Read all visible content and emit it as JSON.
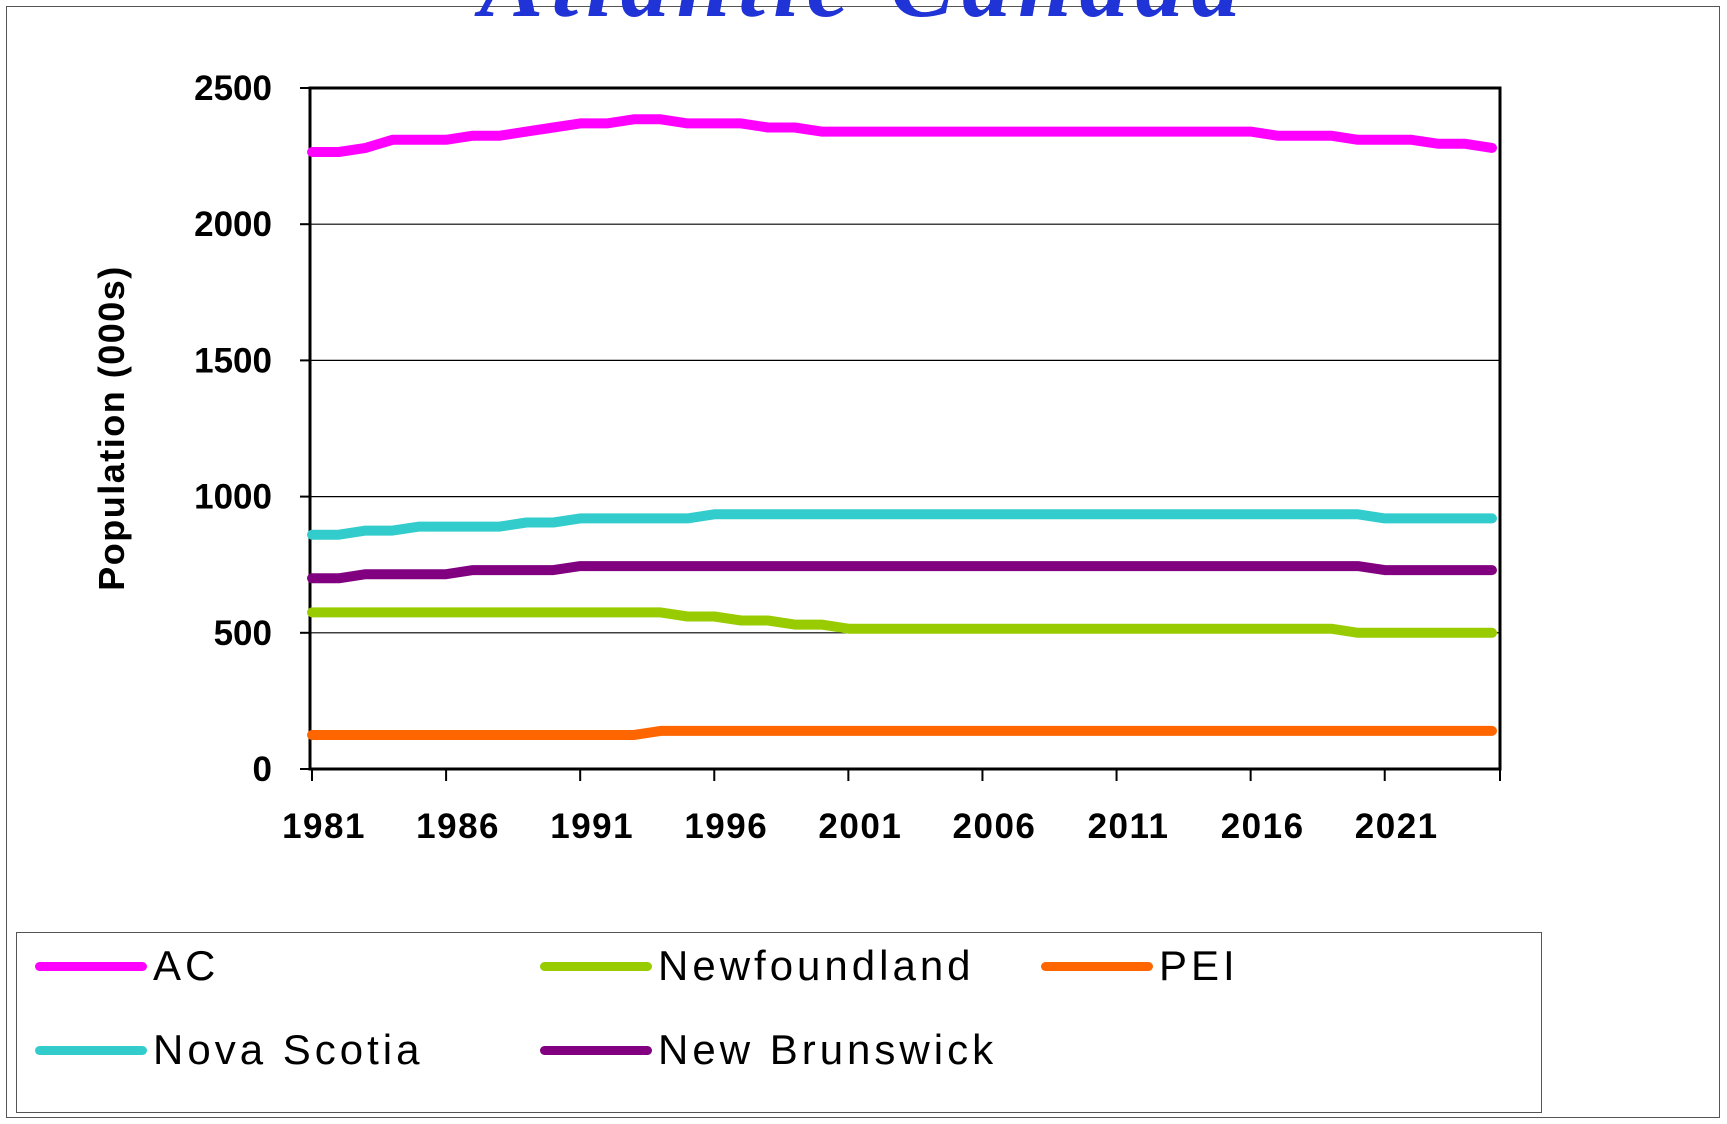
{
  "title": "Atlantic Canada",
  "chart_data": {
    "type": "line",
    "ylabel": "Population (000s)",
    "xlabel": "",
    "xlim": [
      1981,
      2025
    ],
    "ylim": [
      0,
      2500
    ],
    "y_ticks": [
      0,
      500,
      1000,
      1500,
      2000,
      2500
    ],
    "x_tick_labels": [
      1981,
      1986,
      1991,
      1996,
      2001,
      2006,
      2011,
      2016,
      2021
    ],
    "grid": "horizontal",
    "legend_position": "bottom",
    "x": [
      1981,
      1982,
      1983,
      1984,
      1985,
      1986,
      1987,
      1988,
      1989,
      1990,
      1991,
      1992,
      1993,
      1994,
      1995,
      1996,
      1997,
      1998,
      1999,
      2000,
      2001,
      2002,
      2003,
      2004,
      2005,
      2006,
      2007,
      2008,
      2009,
      2010,
      2011,
      2012,
      2013,
      2014,
      2015,
      2016,
      2017,
      2018,
      2019,
      2020,
      2021,
      2022,
      2023,
      2024,
      2025
    ],
    "series": [
      {
        "name": "AC",
        "color": "#ff00ff",
        "values": [
          2265,
          2265,
          2280,
          2310,
          2310,
          2310,
          2325,
          2325,
          2340,
          2355,
          2370,
          2370,
          2385,
          2385,
          2370,
          2370,
          2370,
          2355,
          2355,
          2340,
          2340,
          2340,
          2340,
          2340,
          2340,
          2340,
          2340,
          2340,
          2340,
          2340,
          2340,
          2340,
          2340,
          2340,
          2340,
          2340,
          2325,
          2325,
          2325,
          2310,
          2310,
          2310,
          2295,
          2295,
          2280
        ]
      },
      {
        "name": "Newfoundland",
        "color": "#99cc00",
        "values": [
          575,
          575,
          575,
          575,
          575,
          575,
          575,
          575,
          575,
          575,
          575,
          575,
          575,
          575,
          560,
          560,
          545,
          545,
          530,
          530,
          515,
          515,
          515,
          515,
          515,
          515,
          515,
          515,
          515,
          515,
          515,
          515,
          515,
          515,
          515,
          515,
          515,
          515,
          515,
          500,
          500,
          500,
          500,
          500,
          500
        ]
      },
      {
        "name": "PEI",
        "color": "#ff6600",
        "values": [
          125,
          125,
          125,
          125,
          125,
          125,
          125,
          125,
          125,
          125,
          125,
          125,
          125,
          140,
          140,
          140,
          140,
          140,
          140,
          140,
          140,
          140,
          140,
          140,
          140,
          140,
          140,
          140,
          140,
          140,
          140,
          140,
          140,
          140,
          140,
          140,
          140,
          140,
          140,
          140,
          140,
          140,
          140,
          140,
          140
        ]
      },
      {
        "name": "Nova Scotia",
        "color": "#33cccc",
        "values": [
          860,
          860,
          875,
          875,
          890,
          890,
          890,
          890,
          905,
          905,
          920,
          920,
          920,
          920,
          920,
          935,
          935,
          935,
          935,
          935,
          935,
          935,
          935,
          935,
          935,
          935,
          935,
          935,
          935,
          935,
          935,
          935,
          935,
          935,
          935,
          935,
          935,
          935,
          935,
          935,
          920,
          920,
          920,
          920,
          920
        ]
      },
      {
        "name": "New Brunswick",
        "color": "#800080",
        "values": [
          700,
          700,
          715,
          715,
          715,
          715,
          730,
          730,
          730,
          730,
          745,
          745,
          745,
          745,
          745,
          745,
          745,
          745,
          745,
          745,
          745,
          745,
          745,
          745,
          745,
          745,
          745,
          745,
          745,
          745,
          745,
          745,
          745,
          745,
          745,
          745,
          745,
          745,
          745,
          745,
          730,
          730,
          730,
          730,
          730
        ]
      }
    ]
  }
}
